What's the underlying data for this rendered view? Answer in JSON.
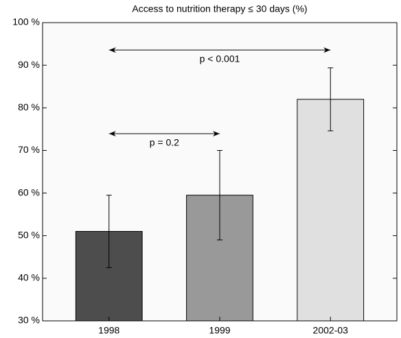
{
  "chart_data": {
    "type": "bar",
    "title": "Access to nutrition therapy ≤ 30 days (%)",
    "categories": [
      "1998",
      "1999",
      "2002-03"
    ],
    "values": [
      51,
      59.5,
      82
    ],
    "errors": [
      8.5,
      10.5,
      7.4
    ],
    "colors": [
      "#4d4d4d",
      "#999999",
      "#e0e0e0"
    ],
    "ylim": [
      30,
      100
    ],
    "yticks": [
      {
        "value": 30,
        "label": "30 %"
      },
      {
        "value": 40,
        "label": "40 %"
      },
      {
        "value": 50,
        "label": "50 %"
      },
      {
        "value": 60,
        "label": "60 %"
      },
      {
        "value": 70,
        "label": "70 %"
      },
      {
        "value": 80,
        "label": "80 %"
      },
      {
        "value": 90,
        "label": "90 %"
      },
      {
        "value": 100,
        "label": "100 %"
      }
    ],
    "annotations": [
      "p < 0.001",
      "p = 0.2"
    ]
  }
}
